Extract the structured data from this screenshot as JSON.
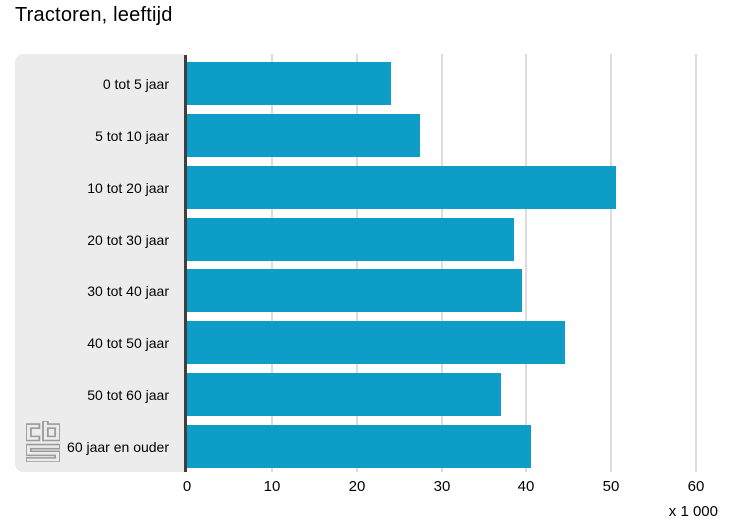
{
  "title": "Tractoren, leeftijd",
  "chart_data": {
    "type": "bar",
    "orientation": "horizontal",
    "title": "Tractoren, leeftijd",
    "categories": [
      "0 tot 5 jaar",
      "5 tot 10 jaar",
      "10 tot 20 jaar",
      "20 tot 30 jaar",
      "30 tot 40 jaar",
      "40 tot 50 jaar",
      "50 tot 60 jaar",
      "60 jaar en ouder"
    ],
    "values": [
      24,
      27.5,
      50.5,
      38.5,
      39.5,
      44.5,
      37,
      40.5
    ],
    "xticks": [
      0,
      10,
      20,
      30,
      40,
      50,
      60
    ],
    "xlim": [
      0,
      62.8
    ],
    "unit_label": "x 1 000",
    "grid": true,
    "legend": "none"
  },
  "colors": {
    "bar": "#0d9dc7",
    "label_panel_bg": "#ececec",
    "gridline": "#dcdcdc",
    "axis_line": "#3f3f3f",
    "text": "#000000",
    "logo": "#9b9b9b"
  },
  "logo": {
    "name": "cbs-logo",
    "alt": "CBS"
  }
}
